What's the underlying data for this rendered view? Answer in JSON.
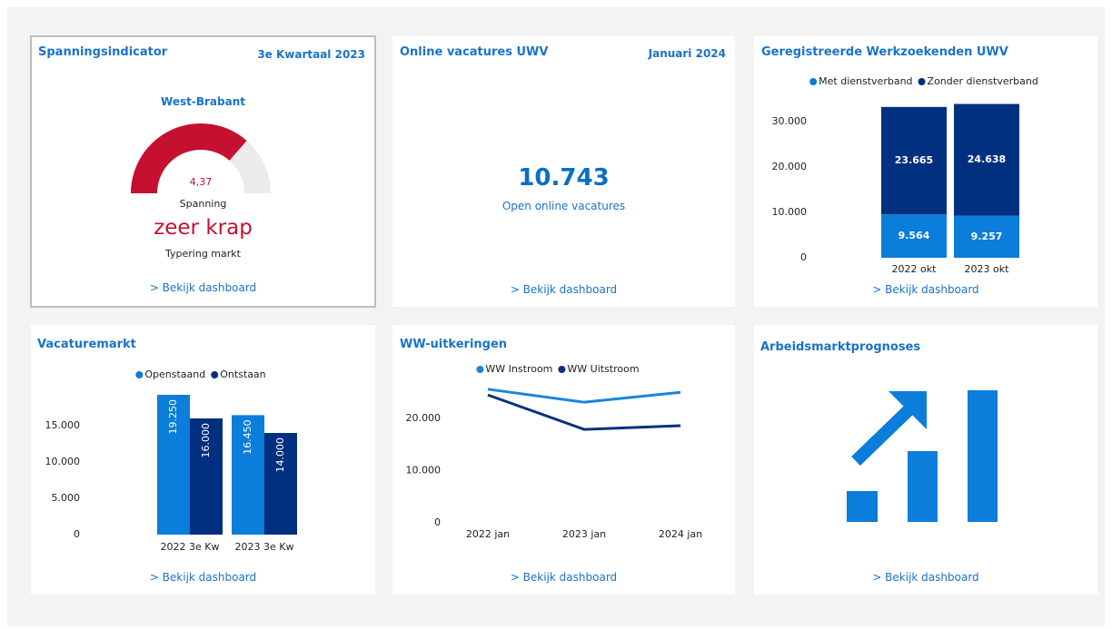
{
  "panels": [
    {
      "title": "Spanningsindicator",
      "period": "3e Kwartaal 2023",
      "region": "West-Brabant",
      "caption": "Spanning",
      "status": "zeer krap",
      "status_caption": "Typering markt",
      "link": "> Bekijk dashboard"
    },
    {
      "title": "Online vacatures UWV",
      "period": "Januari 2024",
      "figure": "10.743",
      "caption": "Open online vacatures",
      "link": "> Bekijk dashboard"
    },
    {
      "title": "Geregistreerde Werkzoekenden UWV",
      "link": "> Bekijk dashboard"
    },
    {
      "title": "Vacaturemarkt",
      "link": "> Bekijk dashboard"
    },
    {
      "title": "WW-uitkeringen",
      "link": "> Bekijk dashboard"
    },
    {
      "title": "Arbeidsmarktprognoses",
      "link": "> Bekijk dashboard"
    }
  ],
  "chart_data": [
    {
      "type": "gauge",
      "values": [
        4.37
      ],
      "value_labels": [
        "4,37"
      ],
      "ylim": [
        0,
        6
      ],
      "color": "#c5102f",
      "track_color": "#ebebeb"
    },
    {
      "type": "stacked_bar",
      "categories": [
        "2022 okt",
        "2023 okt"
      ],
      "series": [
        {
          "name": "Met dienstverband",
          "color": "#0b7dda",
          "values": [
            9564,
            9257
          ],
          "value_labels": [
            "9.564",
            "9.257"
          ]
        },
        {
          "name": "Zonder dienstverband",
          "color": "#00307f",
          "values": [
            23665,
            24638
          ],
          "value_labels": [
            "23.665",
            "24.638"
          ]
        }
      ],
      "ylim": [
        0,
        35000
      ],
      "yticks": [
        0,
        {
          "value": 10000,
          "label": "10.000"
        },
        {
          "value": 20000,
          "label": "20.000"
        },
        {
          "value": 30000,
          "label": "30.000"
        }
      ],
      "grid": false,
      "legend": "top"
    },
    {
      "type": "bar",
      "categories": [
        "2022 3e Kw",
        "2023 3e Kw"
      ],
      "series": [
        {
          "name": "Openstaand",
          "color": "#0b7dda",
          "values": [
            19250,
            16450
          ],
          "value_labels": [
            "19.250",
            "16.450"
          ]
        },
        {
          "name": "Ontstaan",
          "color": "#00307f",
          "values": [
            16000,
            14000
          ],
          "value_labels": [
            "16.000",
            "14.000"
          ]
        }
      ],
      "ylim": [
        0,
        20000
      ],
      "yticks": [
        0,
        {
          "value": 5000,
          "label": "5.000"
        },
        {
          "value": 10000,
          "label": "10.000"
        },
        {
          "value": 15000,
          "label": "15.000"
        }
      ],
      "grid": false,
      "legend": "top"
    },
    {
      "type": "line",
      "categories": [
        "2022 jan",
        "2023 jan",
        "2024 jan"
      ],
      "series": [
        {
          "name": "WW Instroom",
          "color": "#1a86d8",
          "values": [
            25600,
            23100,
            25000
          ]
        },
        {
          "name": "WW Uitstroom",
          "color": "#0a2f7e",
          "values": [
            24500,
            17900,
            18600
          ]
        }
      ],
      "ylim": [
        0,
        27000
      ],
      "yticks": [
        0,
        {
          "value": 10000,
          "label": "10.000"
        },
        {
          "value": 20000,
          "label": "20.000"
        }
      ],
      "grid": false,
      "legend": "top"
    }
  ]
}
